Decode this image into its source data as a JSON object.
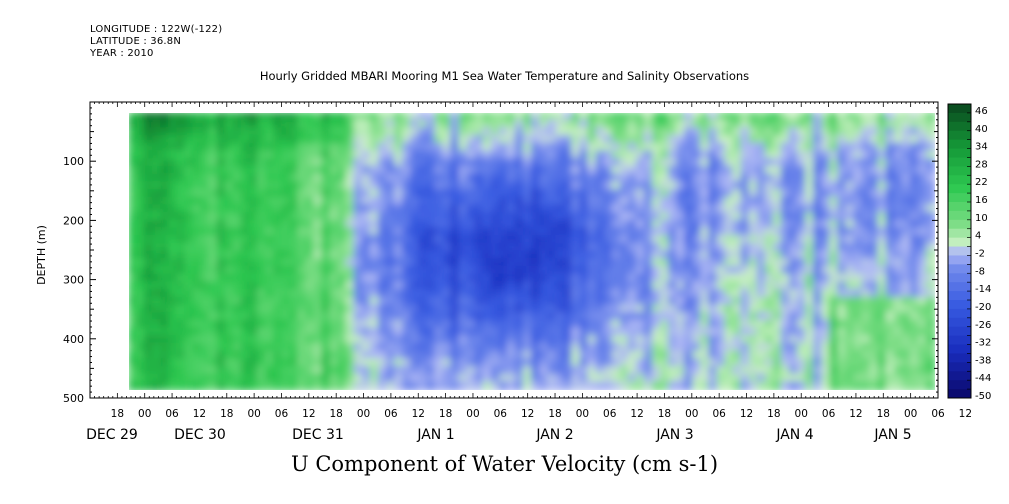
{
  "header": {
    "longitude": "LONGITUDE : 122W(-122)",
    "latitude": "LATITUDE : 36.8N",
    "year": "YEAR : 2010"
  },
  "chart_data": {
    "type": "heatmap",
    "title": "Hourly Gridded MBARI Mooring M1 Sea Water Temperature and Salinity Observations",
    "xlabel": "U Component of Water Velocity (cm s-1)",
    "ylabel": "DEPTH (m)",
    "y_ticks": [
      "100",
      "200",
      "300",
      "400",
      "500"
    ],
    "y_range": [
      10,
      500
    ],
    "y_inverted": true,
    "x_hour_ticks": [
      "18",
      "00",
      "06",
      "12",
      "18",
      "00",
      "06",
      "12",
      "18",
      "00",
      "06",
      "12",
      "18",
      "00",
      "06",
      "12",
      "18",
      "00",
      "06",
      "12",
      "18",
      "00",
      "06",
      "12",
      "18",
      "00",
      "06",
      "12",
      "18",
      "00",
      "06",
      "12"
    ],
    "x_day_labels": [
      "DEC 29",
      "DEC 30",
      "DEC 31",
      "JAN  1",
      "JAN  2",
      "JAN  3",
      "JAN  4",
      "JAN  5"
    ],
    "colorbar": {
      "labels": [
        "46",
        "40",
        "34",
        "28",
        "22",
        "16",
        "10",
        "4",
        "-2",
        "-8",
        "-14",
        "-20",
        "-26",
        "-32",
        "-38",
        "-44",
        "-50"
      ],
      "min": -50,
      "max": 48,
      "step": 3,
      "colors": {
        "deep_negative": "#0a0a80",
        "negative": "#3a55d8",
        "near_zero_neg": "#a5b2f0",
        "near_zero_pos": "#b8eab0",
        "positive": "#3dcc55",
        "deep_positive": "#0a4a20"
      }
    },
    "field_description_regions": {
      "positive_band": "Dec 29 – Dec 30 full depth",
      "negative_core": "Jan 1 – Jan 2, 150–350 m",
      "surface_positive": "Dec 31 – Jan 5, 10–100 m"
    }
  }
}
